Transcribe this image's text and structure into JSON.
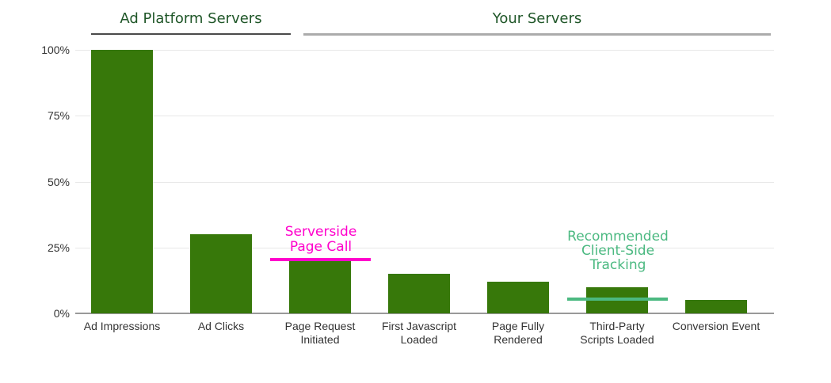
{
  "sections": [
    {
      "label": "Ad Platform Servers",
      "underline_color": "#4A4A4A",
      "covers_bars": [
        0,
        1
      ]
    },
    {
      "label": "Your Servers",
      "underline_color": "#ABABAB",
      "covers_bars": [
        2,
        3,
        4,
        5,
        6
      ]
    }
  ],
  "chart_data": {
    "type": "bar",
    "title": "",
    "categories": [
      "Ad Impressions",
      "Ad Clicks",
      "Page Request\nInitiated",
      "First Javascript\nLoaded",
      "Page Fully\nRendered",
      "Third-Party\nScripts Loaded",
      "Conversion Event"
    ],
    "values": [
      100,
      30,
      20,
      15,
      12,
      10,
      5
    ],
    "value_unit": "percent",
    "ylim": [
      0,
      100
    ],
    "ytick_values": [
      0,
      25,
      50,
      75,
      100
    ],
    "ytick_labels": [
      "0%",
      "25%",
      "50%",
      "75%",
      "100%"
    ],
    "grid": true,
    "legend": "none",
    "bar_color": "#37780A",
    "gridline_color": "#E8E8E8",
    "axis_line_color": "#999999",
    "label_color": "#333333",
    "section_header_color": "#1F5628",
    "annotations": [
      {
        "id": "serverside",
        "text": "Serverside\nPage Call",
        "color": "#FF00CC",
        "line_value": 20.5,
        "bar_index": 2
      },
      {
        "id": "recommended",
        "text": "Recommended\nClient-Side\nTracking",
        "color": "#4BB981",
        "line_value": 5.5,
        "bar_index": 5
      }
    ]
  }
}
